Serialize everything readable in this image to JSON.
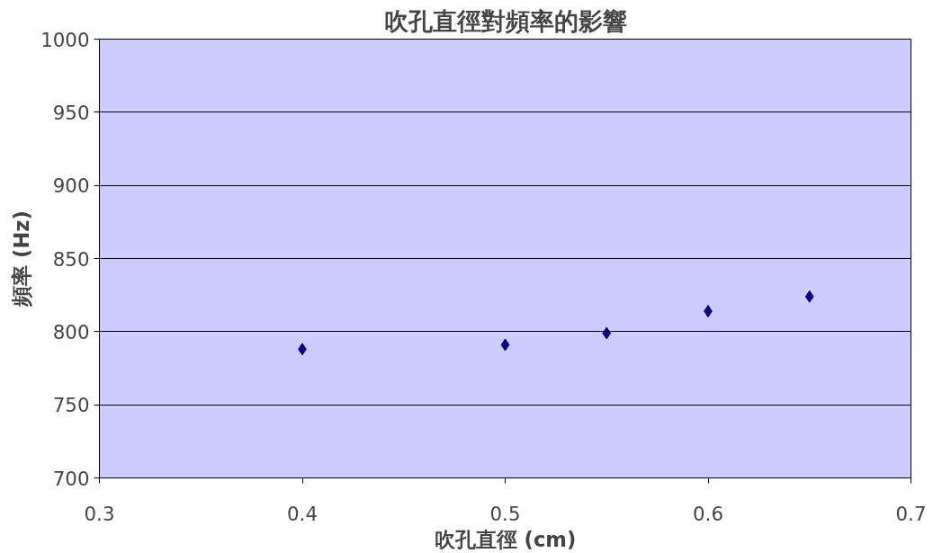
{
  "chart_data": {
    "type": "scatter",
    "title": "吹孔直徑對頻率的影響",
    "xlabel": "吹孔直徑 (cm)",
    "ylabel": "頻率 (Hz)",
    "x": [
      0.4,
      0.5,
      0.55,
      0.6,
      0.65
    ],
    "series": [
      {
        "color": "#000080",
        "values": [
          788,
          791,
          799,
          814,
          824
        ]
      }
    ],
    "xlim": [
      0.3,
      0.7
    ],
    "xticks": [
      0.3,
      0.4,
      0.5,
      0.6,
      0.7
    ],
    "ylim": [
      700,
      1000
    ],
    "yticks": [
      700,
      750,
      800,
      850,
      900,
      950,
      1000
    ],
    "grid": "y",
    "marker": "diamond"
  }
}
